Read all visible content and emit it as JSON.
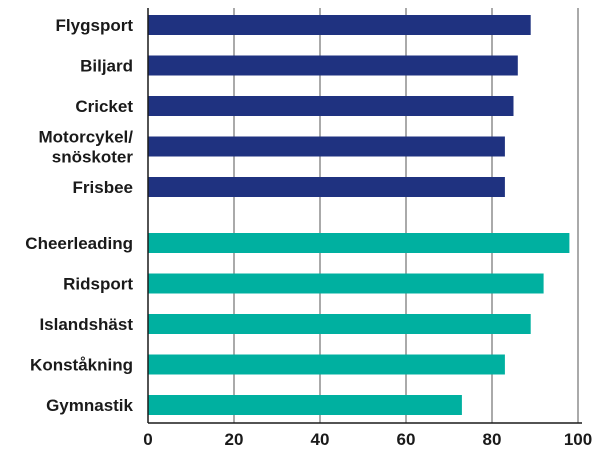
{
  "chart_data": {
    "type": "bar",
    "orientation": "horizontal",
    "title": "",
    "xlabel": "",
    "ylabel": "",
    "xlim": [
      0,
      100
    ],
    "x_ticks": [
      0,
      20,
      40,
      60,
      80,
      100
    ],
    "grid": "vertical",
    "legend": "none",
    "groups": [
      {
        "color": "#1f3280",
        "categories": [
          [
            "Flygsport"
          ],
          [
            "Biljard"
          ],
          [
            "Cricket"
          ],
          [
            "Motorcykel/",
            "snöskoter"
          ],
          [
            "Frisbee"
          ]
        ],
        "values": [
          89,
          86,
          85,
          83,
          83
        ]
      },
      {
        "color": "#00b0a0",
        "categories": [
          [
            "Cheerleading"
          ],
          [
            "Ridsport"
          ],
          [
            "Islandshäst"
          ],
          [
            "Konståkning"
          ],
          [
            "Gymnastik"
          ]
        ],
        "values": [
          98,
          92,
          89,
          83,
          73
        ]
      }
    ]
  }
}
